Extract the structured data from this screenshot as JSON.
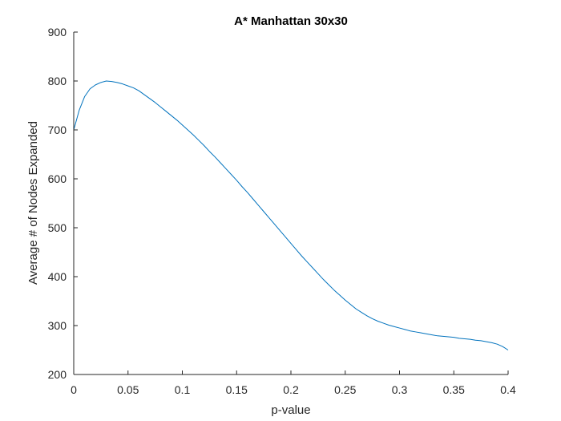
{
  "chart_data": {
    "type": "line",
    "title": "A* Manhattan 30x30",
    "xlabel": "p-value",
    "ylabel": "Average # of Nodes Expanded",
    "xlim": [
      0,
      0.4
    ],
    "ylim": [
      200,
      900
    ],
    "xticks": [
      0,
      0.05,
      0.1,
      0.15,
      0.2,
      0.25,
      0.3,
      0.35,
      0.4
    ],
    "xtick_labels": [
      "0",
      "0.05",
      "0.1",
      "0.15",
      "0.2",
      "0.25",
      "0.3",
      "0.35",
      "0.4"
    ],
    "yticks": [
      200,
      300,
      400,
      500,
      600,
      700,
      800,
      900
    ],
    "ytick_labels": [
      "200",
      "300",
      "400",
      "500",
      "600",
      "700",
      "800",
      "900"
    ],
    "grid": false,
    "line_color": "#0072BD",
    "series": [
      {
        "x": [
          0,
          0.005,
          0.01,
          0.015,
          0.02,
          0.025,
          0.03,
          0.035,
          0.04,
          0.045,
          0.05,
          0.055,
          0.06,
          0.065,
          0.07,
          0.075,
          0.08,
          0.085,
          0.09,
          0.095,
          0.1,
          0.105,
          0.11,
          0.115,
          0.12,
          0.125,
          0.13,
          0.135,
          0.14,
          0.145,
          0.15,
          0.155,
          0.16,
          0.165,
          0.17,
          0.175,
          0.18,
          0.185,
          0.19,
          0.195,
          0.2,
          0.205,
          0.21,
          0.215,
          0.22,
          0.225,
          0.23,
          0.235,
          0.24,
          0.245,
          0.25,
          0.255,
          0.26,
          0.265,
          0.27,
          0.275,
          0.28,
          0.285,
          0.29,
          0.295,
          0.3,
          0.305,
          0.31,
          0.315,
          0.32,
          0.325,
          0.33,
          0.335,
          0.34,
          0.345,
          0.35,
          0.355,
          0.36,
          0.365,
          0.37,
          0.375,
          0.38,
          0.385,
          0.39,
          0.395,
          0.4
        ],
        "y": [
          700,
          740,
          768,
          784,
          792,
          797,
          800,
          799,
          797,
          794,
          790,
          786,
          780,
          772,
          764,
          756,
          747,
          738,
          729,
          720,
          710,
          700,
          690,
          679,
          668,
          656,
          645,
          633,
          621,
          609,
          597,
          584,
          572,
          559,
          546,
          533,
          520,
          507,
          494,
          481,
          468,
          455,
          442,
          430,
          418,
          406,
          394,
          383,
          372,
          362,
          352,
          343,
          334,
          327,
          320,
          314,
          309,
          305,
          301,
          298,
          295,
          292,
          289,
          287,
          285,
          283,
          281,
          279,
          278,
          277,
          276,
          274,
          273,
          272,
          270,
          269,
          267,
          265,
          262,
          257,
          250
        ]
      }
    ]
  }
}
